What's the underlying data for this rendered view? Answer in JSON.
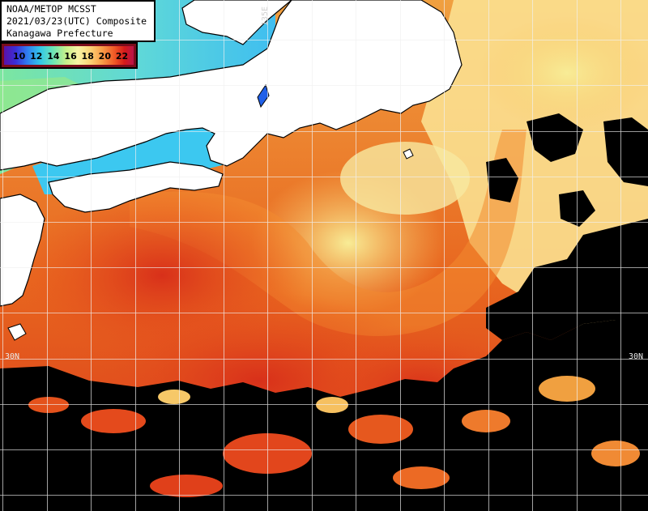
{
  "header": {
    "line1": "NOAA/METOP MCSST",
    "line2": "2021/03/23(UTC) Composite",
    "line3": "Kanagawa Prefecture"
  },
  "legend": {
    "labels": "10 12 14 16 18 20 22",
    "values": [
      10,
      12,
      14,
      16,
      18,
      20,
      22
    ],
    "unit_min_color": "#5a12a8",
    "unit_max_color": "#b8144a"
  },
  "grid": {
    "lat_label_left": "30N",
    "lat_label_right": "30N",
    "lon_label_top": "135E"
  },
  "colors": {
    "land": "#ffffff",
    "coast": "#000000",
    "cloud_mask": "#000000",
    "grid": "#f0f0f0"
  }
}
